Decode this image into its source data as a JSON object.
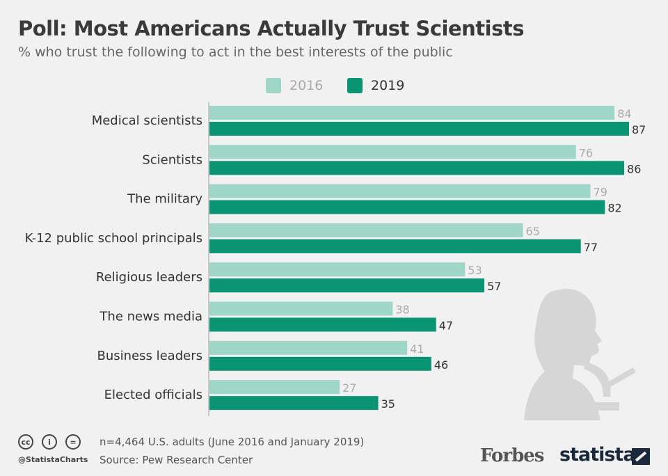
{
  "chart_data": {
    "type": "bar",
    "orientation": "horizontal",
    "title": "Poll: Most Americans Actually Trust Scientists",
    "subtitle": "% who trust the following to act in the best interests of the public",
    "categories": [
      "Medical scientists",
      "Scientists",
      "The military",
      "K-12 public school principals",
      "Religious leaders",
      "The news media",
      "Business leaders",
      "Elected officials"
    ],
    "series": [
      {
        "name": "2016",
        "color": "#9fd6c7",
        "label_color": "#aaaaaa",
        "values": [
          84,
          76,
          79,
          65,
          53,
          38,
          41,
          27
        ]
      },
      {
        "name": "2019",
        "color": "#0b9474",
        "label_color": "#333333",
        "values": [
          87,
          86,
          82,
          77,
          57,
          47,
          46,
          35
        ]
      }
    ],
    "xlim": [
      0,
      100
    ],
    "grid": false,
    "legend_position": "top"
  },
  "footer": {
    "note": "n=4,464 U.S. adults (June 2016 and January 2019)",
    "source": "Source: Pew Research Center",
    "handle": "@StatistaCharts",
    "license_icons": [
      "cc",
      "by",
      "nd"
    ],
    "cc_labels": [
      "cc",
      "i",
      "="
    ],
    "forbes": "Forbes",
    "statista": "statista"
  }
}
